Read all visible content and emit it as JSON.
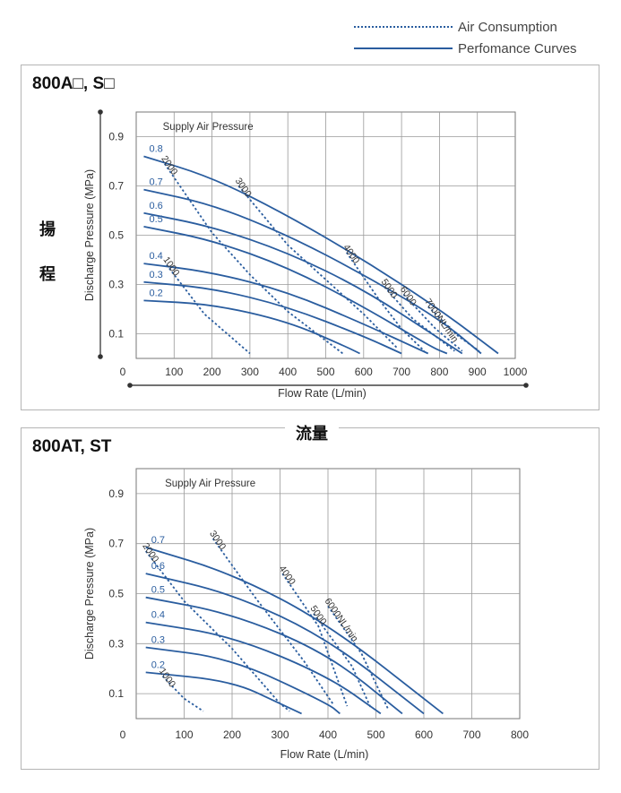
{
  "legend": {
    "air_consumption": "Air Consumption",
    "performance_curves": "Perfomance Curves"
  },
  "side_labels": {
    "head_char1": "揚",
    "head_char2": "程",
    "flow": "流量"
  },
  "colors": {
    "curve": "#2a5d9f",
    "grid": "#9a9a9a",
    "panel_border": "#b5b5b5"
  },
  "chart_data": [
    {
      "type": "line",
      "title": "800A□, S□",
      "xlabel": "Flow Rate (L/min)",
      "ylabel": "Discharge Pressure (MPa)",
      "xlim": [
        0,
        1000
      ],
      "ylim": [
        0,
        1.0
      ],
      "xticks": [
        0,
        100,
        200,
        300,
        400,
        500,
        600,
        700,
        800,
        900,
        1000
      ],
      "yticks": [
        0.1,
        0.3,
        0.5,
        0.7,
        0.9
      ],
      "annotation": "Supply Air Pressure",
      "grid": true,
      "series": [
        {
          "name": "0.8",
          "x": [
            20,
            200,
            400,
            600,
            800,
            955
          ],
          "y": [
            0.82,
            0.735,
            0.58,
            0.4,
            0.2,
            0.02
          ]
        },
        {
          "name": "0.7",
          "x": [
            20,
            200,
            400,
            600,
            800,
            910
          ],
          "y": [
            0.685,
            0.625,
            0.5,
            0.34,
            0.16,
            0.02
          ]
        },
        {
          "name": "0.6",
          "x": [
            20,
            200,
            400,
            600,
            800,
            860
          ],
          "y": [
            0.59,
            0.535,
            0.43,
            0.28,
            0.08,
            0.02
          ]
        },
        {
          "name": "0.5",
          "x": [
            20,
            200,
            400,
            600,
            780,
            820
          ],
          "y": [
            0.535,
            0.48,
            0.37,
            0.21,
            0.045,
            0.02
          ]
        },
        {
          "name": "0.4",
          "x": [
            20,
            200,
            400,
            600,
            770
          ],
          "y": [
            0.385,
            0.35,
            0.27,
            0.14,
            0.02
          ]
        },
        {
          "name": "0.3",
          "x": [
            20,
            200,
            400,
            600,
            700
          ],
          "y": [
            0.31,
            0.285,
            0.21,
            0.09,
            0.02
          ]
        },
        {
          "name": "0.2",
          "x": [
            20,
            200,
            400,
            550,
            590
          ],
          "y": [
            0.235,
            0.22,
            0.15,
            0.05,
            0.02
          ]
        }
      ],
      "air_consumption": [
        {
          "name": "1000",
          "x": [
            80,
            180,
            300
          ],
          "y": [
            0.38,
            0.18,
            0.02
          ]
        },
        {
          "name": "2000",
          "x": [
            75,
            200,
            300,
            400,
            545
          ],
          "y": [
            0.79,
            0.51,
            0.34,
            0.19,
            0.02
          ]
        },
        {
          "name": "3000",
          "x": [
            270,
            400,
            500,
            600,
            690
          ],
          "y": [
            0.7,
            0.46,
            0.32,
            0.18,
            0.04
          ]
        },
        {
          "name": "4000",
          "x": [
            555,
            640,
            700,
            760
          ],
          "y": [
            0.43,
            0.24,
            0.12,
            0.03
          ]
        },
        {
          "name": "5000",
          "x": [
            655,
            730,
            790,
            840
          ],
          "y": [
            0.29,
            0.16,
            0.09,
            0.03
          ]
        },
        {
          "name": "6000",
          "x": [
            705,
            790,
            860
          ],
          "y": [
            0.26,
            0.12,
            0.03
          ]
        },
        {
          "name": "7000NL/min",
          "x": [
            770,
            850,
            905
          ],
          "y": [
            0.21,
            0.09,
            0.03
          ]
        }
      ]
    },
    {
      "type": "line",
      "title": "800AT, ST",
      "xlabel": "Flow Rate (L/min)",
      "ylabel": "Discharge Pressure (MPa)",
      "xlim": [
        0,
        800
      ],
      "ylim": [
        0,
        1.0
      ],
      "xticks": [
        0,
        100,
        200,
        300,
        400,
        500,
        600,
        700,
        800
      ],
      "yticks": [
        0.1,
        0.3,
        0.5,
        0.7,
        0.9
      ],
      "annotation": "Supply Air Pressure",
      "grid": true,
      "series": [
        {
          "name": "0.7",
          "x": [
            20,
            200,
            400,
            640
          ],
          "y": [
            0.685,
            0.58,
            0.38,
            0.02
          ]
        },
        {
          "name": "0.6",
          "x": [
            20,
            200,
            400,
            600
          ],
          "y": [
            0.58,
            0.5,
            0.32,
            0.02
          ]
        },
        {
          "name": "0.5",
          "x": [
            20,
            200,
            400,
            555
          ],
          "y": [
            0.485,
            0.42,
            0.26,
            0.02
          ]
        },
        {
          "name": "0.4",
          "x": [
            20,
            200,
            400,
            510
          ],
          "y": [
            0.385,
            0.33,
            0.17,
            0.02
          ]
        },
        {
          "name": "0.3",
          "x": [
            20,
            200,
            400,
            425
          ],
          "y": [
            0.285,
            0.24,
            0.06,
            0.02
          ]
        },
        {
          "name": "0.2",
          "x": [
            20,
            200,
            300,
            345
          ],
          "y": [
            0.185,
            0.15,
            0.06,
            0.02
          ]
        }
      ],
      "air_consumption": [
        {
          "name": "1000",
          "x": [
            55,
            100,
            140
          ],
          "y": [
            0.17,
            0.08,
            0.03
          ]
        },
        {
          "name": "2000",
          "x": [
            20,
            100,
            200,
            300,
            320
          ],
          "y": [
            0.67,
            0.47,
            0.28,
            0.06,
            0.03
          ]
        },
        {
          "name": "3000",
          "x": [
            160,
            250,
            350,
            410
          ],
          "y": [
            0.72,
            0.48,
            0.23,
            0.06
          ]
        },
        {
          "name": "4000",
          "x": [
            305,
            380,
            440
          ],
          "y": [
            0.58,
            0.37,
            0.05
          ]
        },
        {
          "name": "5000",
          "x": [
            370,
            450,
            490
          ],
          "y": [
            0.42,
            0.21,
            0.04
          ]
        },
        {
          "name": "6000NL/min",
          "x": [
            400,
            470,
            525
          ],
          "y": [
            0.45,
            0.26,
            0.04
          ]
        }
      ]
    }
  ]
}
